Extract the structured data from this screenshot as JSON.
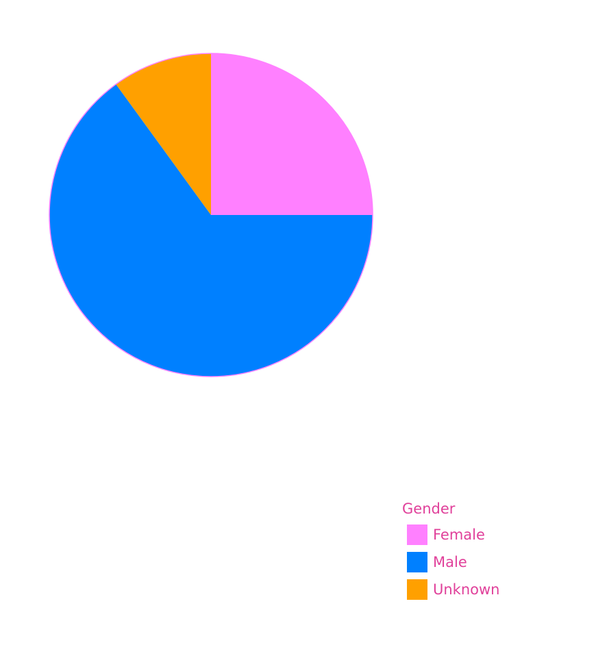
{
  "chart_data": {
    "type": "pie",
    "legend_title": "Gender",
    "legend_position": "bottom-right",
    "slices": [
      {
        "label": "Female",
        "value": 25,
        "color": "#ff80ff"
      },
      {
        "label": "Male",
        "value": 65,
        "color": "#0080ff"
      },
      {
        "label": "Unknown",
        "value": 10,
        "color": "#ffa000"
      }
    ]
  },
  "colors": {
    "legend_text": "#e0409a",
    "slice_border": "#ff80ff"
  }
}
